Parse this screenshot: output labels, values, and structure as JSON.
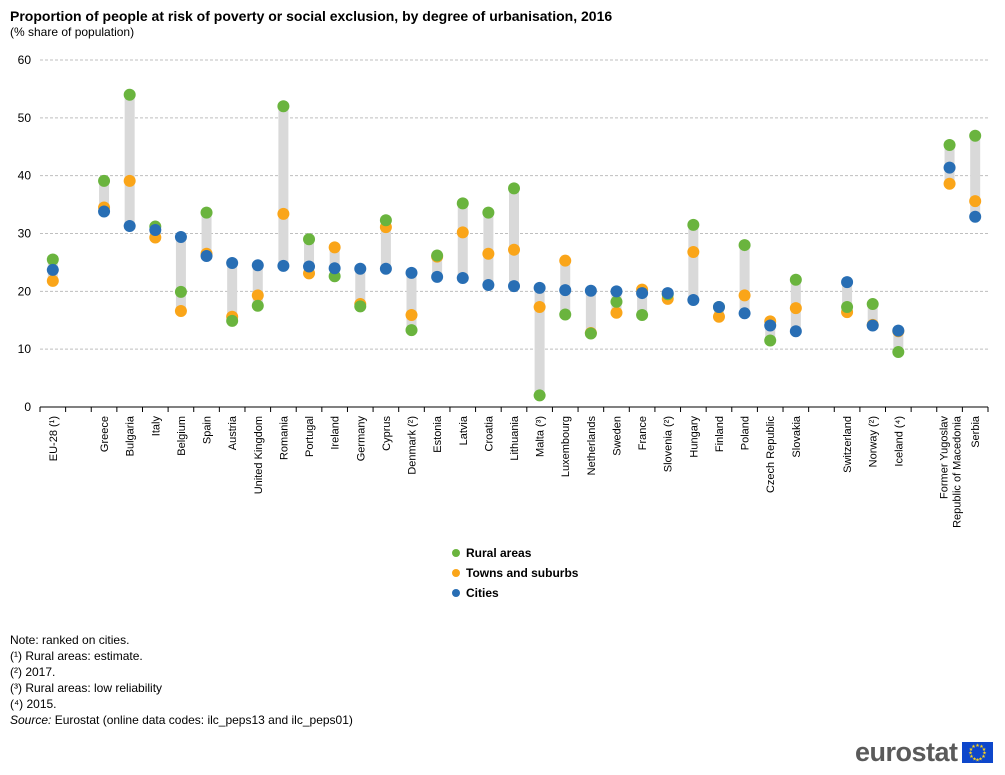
{
  "title": "Proportion of people at risk of poverty or social exclusion, by degree of urbanisation, 2016",
  "subtitle": "(% share of population)",
  "colors": {
    "rural": "#6ab43e",
    "towns": "#faa519",
    "cities": "#286eb4",
    "range": "#d9d9d9",
    "grid": "#bfbfbf"
  },
  "legend": {
    "rural": "Rural areas",
    "towns": "Towns and suburbs",
    "cities": "Cities"
  },
  "notes": [
    "Note: ranked on cities.",
    "(¹) Rural areas: estimate.",
    "(²) 2017.",
    "(³) Rural areas: low reliability",
    "(⁴) 2015."
  ],
  "source_label": "Source:",
  "source_text": " Eurostat (online data codes: ilc_peps13 and ilc_peps01)",
  "logo": "eurostat",
  "chart_data": {
    "type": "scatter",
    "title": "Proportion of people at risk of poverty or social exclusion, by degree of urbanisation, 2016",
    "subtitle": "(% share of population)",
    "ylim": [
      0,
      60
    ],
    "yticks": [
      0,
      10,
      20,
      30,
      40,
      50,
      60
    ],
    "grid": true,
    "legend_position": "bottom",
    "categories": [
      "EU-28 (¹)",
      "",
      "Greece",
      "Bulgaria",
      "Italy",
      "Belgium",
      "Spain",
      "Austria",
      "United Kingdom",
      "Romania",
      "Portugal",
      "Ireland",
      "Germany",
      "Cyprus",
      "Denmark (²)",
      "Estonia",
      "Latvia",
      "Croatia",
      "Lithuania",
      "Malta (³)",
      "Luxembourg",
      "Netherlands",
      "Sweden",
      "France",
      "Slovenia (²)",
      "Hungary",
      "Finland",
      "Poland",
      "Czech Republic",
      "Slovakia",
      "",
      "Switzerland",
      "Norway (²)",
      "Iceland (⁴)",
      "",
      "Former Yugoslav Republic of Macedonia",
      "Serbia"
    ],
    "series": [
      {
        "name": "Rural areas",
        "values": [
          25.5,
          null,
          39.1,
          54.0,
          31.2,
          19.9,
          33.6,
          14.9,
          17.5,
          52.0,
          29.0,
          22.6,
          17.4,
          32.3,
          13.3,
          26.2,
          35.2,
          33.6,
          37.8,
          2.0,
          16.0,
          12.7,
          18.2,
          15.9,
          19.5,
          31.5,
          17.3,
          28.0,
          11.5,
          22.0,
          null,
          17.3,
          17.8,
          9.5,
          null,
          45.3,
          46.9
        ]
      },
      {
        "name": "Towns and suburbs",
        "values": [
          21.8,
          null,
          34.5,
          39.1,
          29.3,
          16.6,
          26.5,
          15.6,
          19.3,
          33.4,
          23.1,
          27.6,
          17.8,
          31.1,
          15.9,
          26.0,
          30.2,
          26.5,
          27.2,
          17.3,
          25.3,
          12.8,
          16.3,
          20.3,
          18.7,
          26.8,
          15.6,
          19.3,
          14.8,
          17.1,
          null,
          16.4,
          14.2,
          13.1,
          null,
          38.6,
          35.6
        ]
      },
      {
        "name": "Cities",
        "values": [
          23.7,
          null,
          33.8,
          31.3,
          30.6,
          29.4,
          26.1,
          24.9,
          24.5,
          24.4,
          24.3,
          24.0,
          23.9,
          23.9,
          23.2,
          22.5,
          22.3,
          21.1,
          20.9,
          20.6,
          20.2,
          20.1,
          20.0,
          19.7,
          19.7,
          18.5,
          17.3,
          16.2,
          14.1,
          13.1,
          null,
          21.6,
          14.1,
          13.2,
          null,
          41.4,
          32.9
        ]
      }
    ]
  }
}
